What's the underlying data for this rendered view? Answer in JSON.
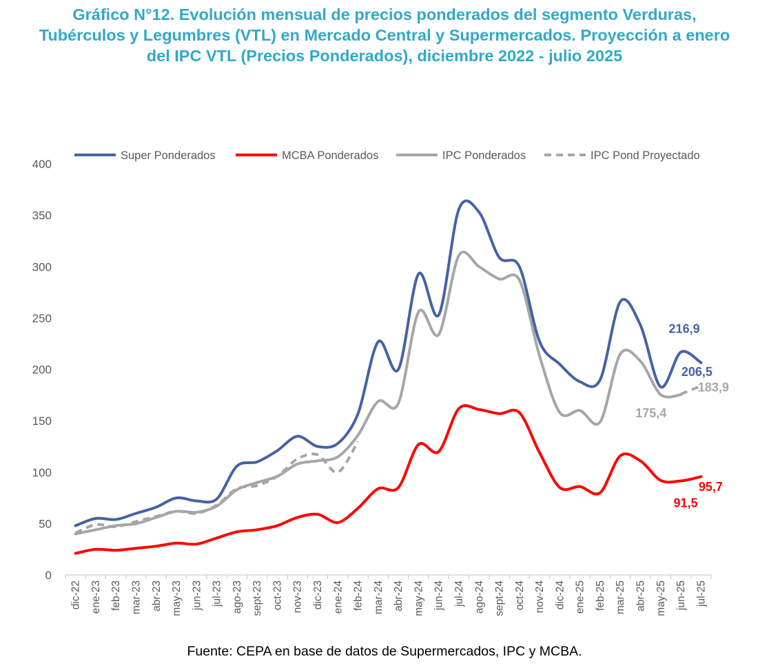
{
  "title": "Gráfico N°12. Evolución mensual de precios ponderados del segmento Verduras, Tubérculos y Legumbres (VTL) en Mercado Central y Supermercados. Proyección a enero del IPC VTL (Precios Ponderados), diciembre 2022 - julio 2025",
  "source": "Fuente: CEPA en base de datos de Supermercados, IPC y MCBA.",
  "chart_data": {
    "type": "line",
    "title": "Gráfico N°12. Evolución mensual de precios ponderados del segmento Verduras, Tubérculos y Legumbres (VTL) en Mercado Central y Supermercados. Proyección a enero del IPC VTL (Precios Ponderados), diciembre 2022 - julio 2025",
    "xlabel": "",
    "ylabel": "",
    "ylim": [
      0,
      400
    ],
    "yticks": [
      0,
      50,
      100,
      150,
      200,
      250,
      300,
      350,
      400
    ],
    "grid": false,
    "legend": "top",
    "categories": [
      "dic-22",
      "ene-23",
      "feb-23",
      "mar-23",
      "abr-23",
      "may-23",
      "jun-23",
      "jul-23",
      "ago-23",
      "sept-23",
      "oct-23",
      "nov-23",
      "dic-23",
      "ene-24",
      "feb-24",
      "mar-24",
      "abr-24",
      "may-24",
      "jun-24",
      "jul-24",
      "ago-24",
      "sept-24",
      "oct-24",
      "nov-24",
      "dic-24",
      "ene-25",
      "feb-25",
      "mar-25",
      "abr-25",
      "may-25",
      "jun-25",
      "jul-25"
    ],
    "series": [
      {
        "name": "Super Ponderados",
        "color": "#4462a6",
        "style": "solid",
        "values": [
          48,
          55,
          54,
          60,
          66,
          75,
          72,
          74,
          106,
          110,
          121,
          135,
          125,
          128,
          157,
          227,
          200,
          293,
          253,
          356,
          353,
          309,
          300,
          227,
          205,
          188,
          190,
          266,
          243,
          183,
          216.9,
          206.5
        ]
      },
      {
        "name": "MCBA Ponderados",
        "color": "#ff0000",
        "style": "solid",
        "values": [
          21,
          25,
          24,
          26,
          28,
          31,
          30,
          36,
          42,
          44,
          48,
          56,
          59,
          51,
          65,
          84,
          85,
          127,
          120,
          162,
          161,
          157,
          158,
          119,
          85,
          86,
          80,
          116,
          111,
          92,
          91.5,
          95.7
        ]
      },
      {
        "name": "IPC Ponderados",
        "color": "#a6a6a6",
        "style": "solid",
        "values": [
          40,
          44,
          48,
          50,
          56,
          62,
          61,
          67,
          83,
          90,
          96,
          108,
          111,
          115,
          136,
          169,
          167,
          256,
          234,
          311,
          300,
          288,
          287,
          213,
          158,
          160,
          149,
          215,
          208,
          175.4,
          175.4,
          null
        ]
      },
      {
        "name": "IPC Pond Proyectado",
        "color": "#a6a6a6",
        "style": "dashed",
        "values": [
          41,
          49,
          47,
          52,
          57,
          62,
          60,
          68,
          84,
          87,
          96,
          113,
          117,
          100,
          130,
          null,
          null,
          null,
          null,
          null,
          null,
          null,
          null,
          null,
          null,
          null,
          null,
          null,
          null,
          null,
          176,
          183.9
        ]
      }
    ],
    "data_labels": [
      {
        "text": "216,9",
        "series": "Super Ponderados",
        "index": 30,
        "color": "#4462a6"
      },
      {
        "text": "206,5",
        "series": "Super Ponderados",
        "index": 31,
        "color": "#4462a6"
      },
      {
        "text": "175,4",
        "series": "IPC Ponderados",
        "index": 29,
        "color": "#a6a6a6"
      },
      {
        "text": "183,9",
        "series": "IPC Pond Proyectado",
        "index": 31,
        "color": "#a6a6a6"
      },
      {
        "text": "91,5",
        "series": "MCBA Ponderados",
        "index": 30,
        "color": "#ff0000"
      },
      {
        "text": "95,7",
        "series": "MCBA Ponderados",
        "index": 31,
        "color": "#ff0000"
      }
    ]
  }
}
